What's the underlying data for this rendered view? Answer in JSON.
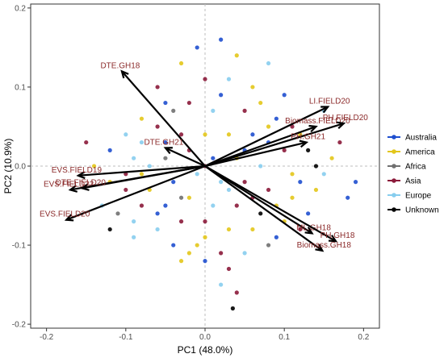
{
  "chart_data": {
    "type": "scatter",
    "xlabel": "PC1 (48.0%)",
    "ylabel": "PC2 (10.9%)",
    "xlim": [
      -0.22,
      0.22
    ],
    "ylim": [
      -0.205,
      0.205
    ],
    "x_ticks": [
      "-0.2",
      "-0.1",
      "0.0",
      "0.1",
      "0.2"
    ],
    "y_ticks": [
      "-0.2",
      "-0.1",
      "0.0",
      "0.1",
      "0.2"
    ],
    "grid": false,
    "legend_position": "right",
    "legend": [
      {
        "name": "Australia",
        "color": "#1f4fcf"
      },
      {
        "name": "America",
        "color": "#e3c61a"
      },
      {
        "name": "Africa",
        "color": "#707070"
      },
      {
        "name": "Asia",
        "color": "#8b1a3a"
      },
      {
        "name": "Europe",
        "color": "#87cdee"
      },
      {
        "name": "Unknown",
        "color": "#000000"
      }
    ],
    "loadings": [
      {
        "label": "DTE.GH18",
        "x": -0.105,
        "y": 0.12
      },
      {
        "label": "LI.FIELD20",
        "x": 0.155,
        "y": 0.075
      },
      {
        "label": "Biomass.FIELD20",
        "x": 0.14,
        "y": 0.05
      },
      {
        "label": "PH.FIELD20",
        "x": 0.175,
        "y": 0.054
      },
      {
        "label": "PH.GH21",
        "x": 0.128,
        "y": 0.03
      },
      {
        "label": "DTE.GH21",
        "x": -0.05,
        "y": 0.023
      },
      {
        "label": "EVS.FIELD19",
        "x": -0.16,
        "y": -0.012
      },
      {
        "label": "EVS.FIELD22",
        "x": -0.17,
        "y": -0.03
      },
      {
        "label": "DTE.FIELD20",
        "x": -0.155,
        "y": -0.028
      },
      {
        "label": "EVS.FIELD20",
        "x": -0.175,
        "y": -0.068
      },
      {
        "label": "ML.GH18",
        "x": 0.135,
        "y": -0.085
      },
      {
        "label": "PH.GH18",
        "x": 0.165,
        "y": -0.095
      },
      {
        "label": "Biomass.GH18",
        "x": 0.148,
        "y": -0.107
      }
    ],
    "points": [
      [
        -0.01,
        0.15
      ],
      [
        0.02,
        0.16
      ],
      [
        -0.03,
        0.13
      ],
      [
        0.04,
        0.14
      ],
      [
        0.0,
        0.11
      ],
      [
        -0.06,
        0.1
      ],
      [
        0.03,
        0.11
      ],
      [
        0.08,
        0.13
      ],
      [
        0.1,
        0.09
      ],
      [
        0.06,
        0.1
      ],
      [
        -0.02,
        0.08
      ],
      [
        0.01,
        0.07
      ],
      [
        -0.04,
        0.07
      ],
      [
        0.05,
        0.07
      ],
      [
        0.09,
        0.06
      ],
      [
        0.12,
        0.04
      ],
      [
        0.15,
        0.07
      ],
      [
        0.17,
        0.03
      ],
      [
        0.14,
        0.0
      ],
      [
        0.11,
        -0.01
      ],
      [
        0.08,
        0.03
      ],
      [
        0.06,
        0.04
      ],
      [
        0.03,
        0.04
      ],
      [
        0.0,
        0.04
      ],
      [
        -0.03,
        0.04
      ],
      [
        -0.06,
        0.05
      ],
      [
        -0.08,
        0.03
      ],
      [
        -0.1,
        0.04
      ],
      [
        -0.12,
        0.02
      ],
      [
        -0.14,
        0.0
      ],
      [
        -0.1,
        -0.01
      ],
      [
        -0.07,
        0.0
      ],
      [
        -0.05,
        0.01
      ],
      [
        -0.02,
        0.02
      ],
      [
        0.01,
        0.01
      ],
      [
        0.04,
        0.01
      ],
      [
        0.07,
        0.0
      ],
      [
        0.1,
        0.02
      ],
      [
        0.13,
        0.02
      ],
      [
        0.16,
        0.01
      ],
      [
        0.19,
        -0.02
      ],
      [
        0.18,
        -0.04
      ],
      [
        0.14,
        -0.03
      ],
      [
        0.11,
        -0.04
      ],
      [
        0.08,
        -0.03
      ],
      [
        0.05,
        -0.02
      ],
      [
        0.02,
        -0.02
      ],
      [
        -0.01,
        -0.01
      ],
      [
        -0.04,
        -0.02
      ],
      [
        -0.07,
        -0.03
      ],
      [
        -0.1,
        -0.03
      ],
      [
        -0.13,
        -0.05
      ],
      [
        -0.11,
        -0.06
      ],
      [
        -0.08,
        -0.05
      ],
      [
        -0.05,
        -0.05
      ],
      [
        -0.02,
        -0.04
      ],
      [
        0.01,
        -0.05
      ],
      [
        0.04,
        -0.05
      ],
      [
        0.07,
        -0.06
      ],
      [
        0.1,
        -0.07
      ],
      [
        0.13,
        -0.06
      ],
      [
        0.09,
        -0.09
      ],
      [
        0.06,
        -0.08
      ],
      [
        0.03,
        -0.08
      ],
      [
        0.0,
        -0.07
      ],
      [
        -0.03,
        -0.07
      ],
      [
        -0.06,
        -0.08
      ],
      [
        -0.09,
        -0.09
      ],
      [
        -0.04,
        -0.1
      ],
      [
        -0.01,
        -0.1
      ],
      [
        0.02,
        -0.11
      ],
      [
        0.05,
        -0.11
      ],
      [
        0.08,
        -0.1
      ],
      [
        0.03,
        -0.13
      ],
      [
        0.0,
        -0.12
      ],
      [
        -0.03,
        -0.12
      ],
      [
        0.02,
        -0.15
      ],
      [
        0.04,
        -0.16
      ],
      [
        0.035,
        -0.18
      ],
      [
        -0.02,
        -0.11
      ],
      [
        -0.05,
        0.08
      ],
      [
        0.02,
        0.09
      ],
      [
        0.07,
        0.08
      ],
      [
        -0.08,
        0.06
      ],
      [
        0.11,
        0.05
      ],
      [
        -0.15,
        0.03
      ],
      [
        -0.09,
        0.01
      ],
      [
        0.15,
        -0.01
      ],
      [
        0.12,
        -0.02
      ],
      [
        -0.12,
        -0.02
      ],
      [
        0.0,
        0.0
      ],
      [
        0.03,
        -0.03
      ],
      [
        -0.03,
        -0.04
      ],
      [
        0.06,
        -0.04
      ],
      [
        -0.06,
        -0.06
      ],
      [
        0.09,
        -0.05
      ],
      [
        -0.09,
        -0.07
      ],
      [
        0.12,
        -0.08
      ],
      [
        -0.12,
        -0.08
      ],
      [
        0.0,
        -0.09
      ],
      [
        0.05,
        0.02
      ],
      [
        -0.05,
        0.03
      ],
      [
        0.08,
        0.05
      ],
      [
        -0.08,
        -0.01
      ]
    ]
  }
}
